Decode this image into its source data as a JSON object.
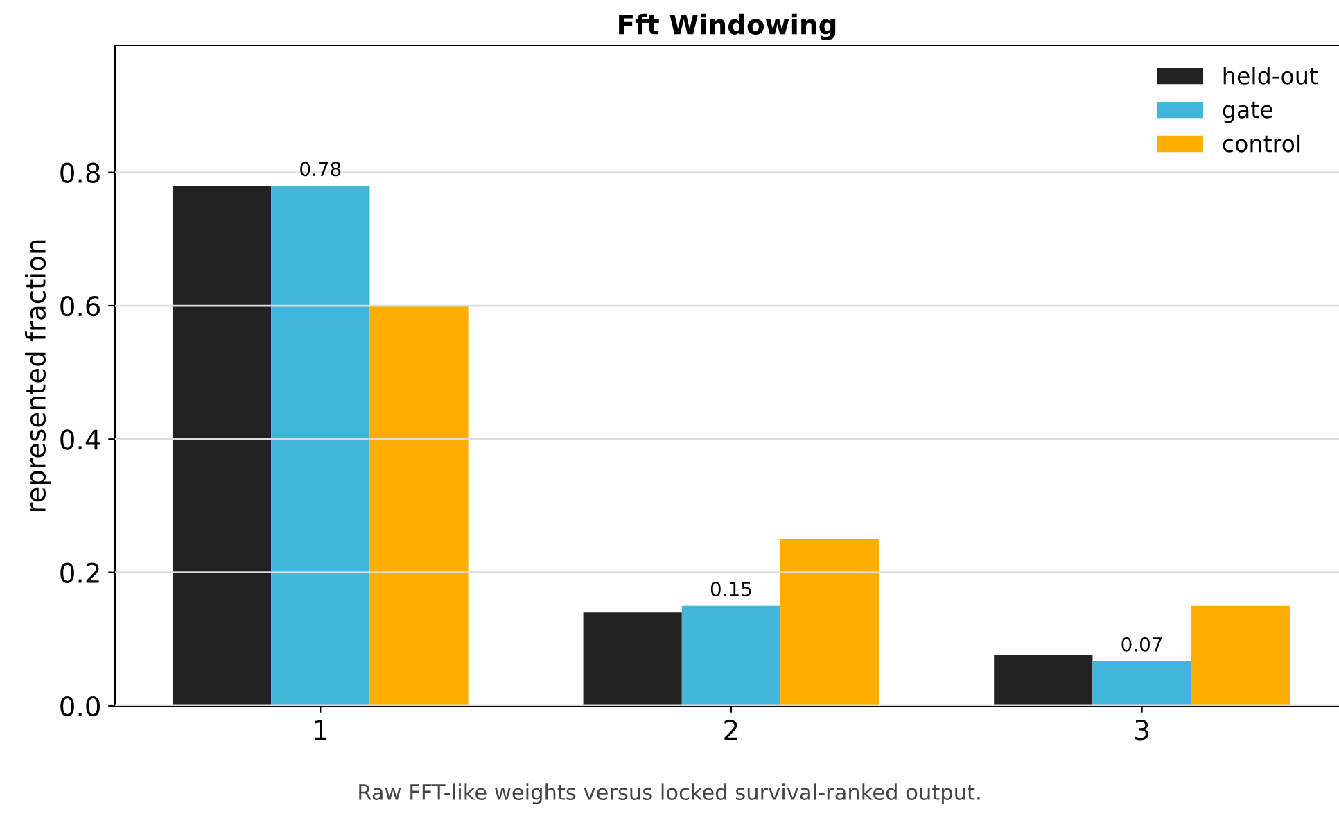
{
  "chart_data": {
    "type": "bar",
    "title": "Fft Windowing",
    "ylabel": "represented fraction",
    "categories": [
      "1",
      "2",
      "3"
    ],
    "series": [
      {
        "name": "held-out",
        "color": "#222222",
        "values": [
          0.78,
          0.14,
          0.077
        ]
      },
      {
        "name": "gate",
        "color": "#41b6db",
        "values": [
          0.78,
          0.15,
          0.067
        ],
        "value_labels": [
          "0.78",
          "0.15",
          "0.07"
        ]
      },
      {
        "name": "control",
        "color": "#ffae00",
        "values": [
          0.6,
          0.25,
          0.15
        ]
      }
    ],
    "ylim": [
      0,
      0.99
    ],
    "yticks": [
      {
        "value": 0,
        "label": "0.0"
      },
      0.2,
      0.4,
      0.6,
      0.8
    ],
    "grid": "y",
    "legend": "top right",
    "annotations": [
      "Raw FFT-like weights versus locked survival-ranked output."
    ]
  }
}
